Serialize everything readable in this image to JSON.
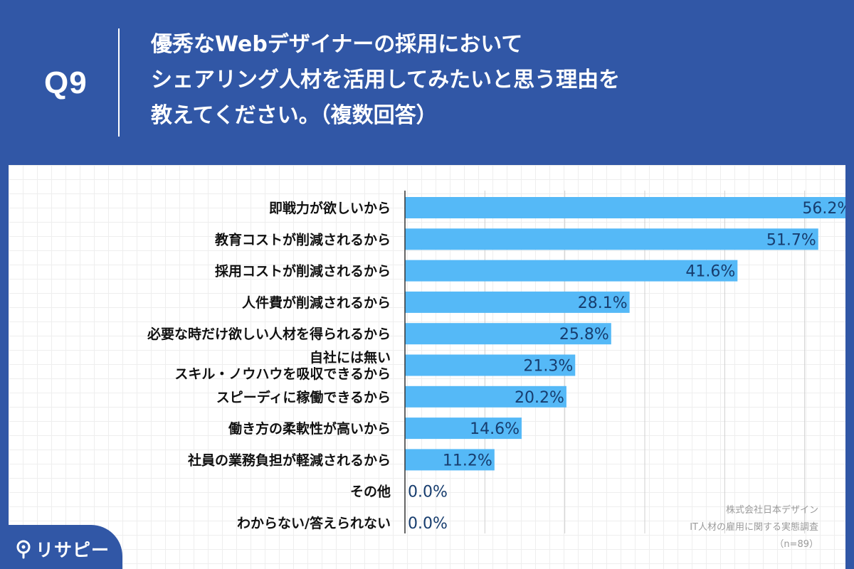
{
  "question": {
    "number": "Q9",
    "title_lines": [
      "優秀なWebデザイナーの採用において",
      "シェアリング人材を活用してみたいと思う理由を",
      "教えてください。（複数回答）"
    ]
  },
  "brand": {
    "name": "リサピー"
  },
  "source": {
    "lines": [
      "株式会社日本デザイン",
      "IT人材の雇用に関する実態調査",
      "（n=89）"
    ]
  },
  "colors": {
    "background": "#3157a6",
    "bar": "#55b9f7",
    "value_label": "#173d6e",
    "category_label": "#111111"
  },
  "chart_data": {
    "type": "bar",
    "orientation": "horizontal",
    "categories": [
      "即戦力が欲しいから",
      "教育コストが削減されるから",
      "採用コストが削減されるから",
      "人件費が削減されるから",
      "必要な時だけ欲しい人材を得られるから",
      "自社には無い\nスキル・ノウハウを吸収できるから",
      "スピーディに稼働できるから",
      "働き方の柔軟性が高いから",
      "社員の業務負担が軽減されるから",
      "その他",
      "わからない/答えられない"
    ],
    "values": [
      56.2,
      51.7,
      41.6,
      28.1,
      25.8,
      21.3,
      20.2,
      14.6,
      11.2,
      0.0,
      0.0
    ],
    "value_labels": [
      "56.2%",
      "51.7%",
      "41.6%",
      "28.1%",
      "25.8%",
      "21.3%",
      "20.2%",
      "14.6%",
      "11.2%",
      "0.0%",
      "0.0%"
    ],
    "xlim": [
      0,
      60
    ],
    "grid": true
  }
}
